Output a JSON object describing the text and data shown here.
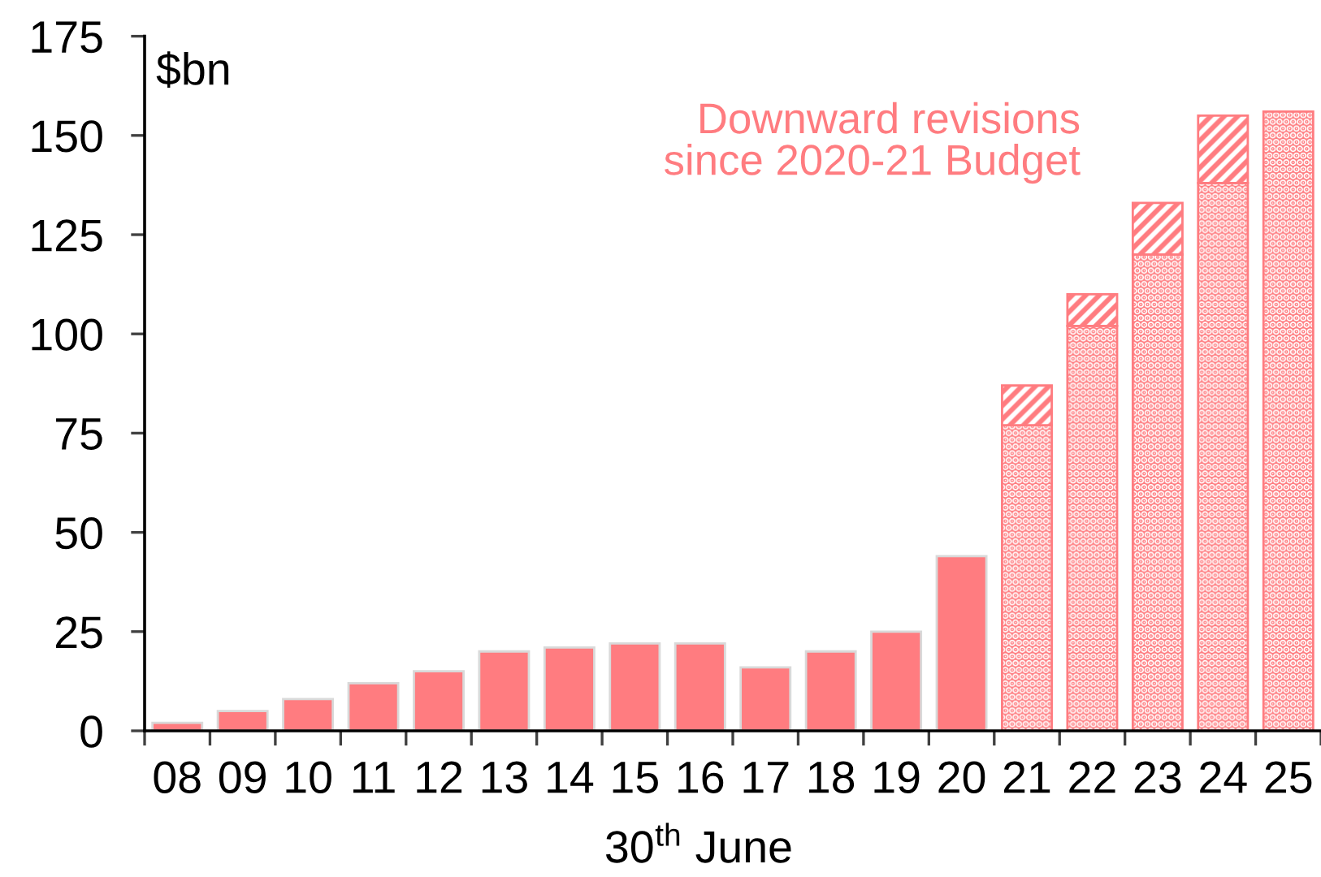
{
  "chart_data": {
    "type": "bar",
    "stacked": true,
    "ylabel": "$bn",
    "xlabel": "30$^{th}$ June",
    "annotations": [
      "Downward revisions\nsince 2020-21 Budget"
    ],
    "categories": [
      "08",
      "09",
      "10",
      "11",
      "12",
      "13",
      "14",
      "15",
      "16",
      "17",
      "18",
      "19",
      "20",
      "21",
      "22",
      "23",
      "24",
      "25"
    ],
    "series": [
      {
        "color": "#ff7c80",
        "values": [
          2,
          5,
          8,
          12,
          15,
          20,
          21,
          22,
          22,
          16,
          20,
          25,
          44,
          null,
          null,
          null,
          null,
          null
        ]
      },
      {
        "color": "#ff7c80",
        "values": [
          null,
          null,
          null,
          null,
          null,
          null,
          null,
          null,
          null,
          null,
          null,
          null,
          null,
          77,
          102,
          120,
          138,
          156
        ]
      },
      {
        "color": "#ff7c80",
        "values": [
          null,
          null,
          null,
          null,
          null,
          null,
          null,
          null,
          null,
          null,
          null,
          null,
          null,
          10,
          8,
          13,
          17,
          null
        ]
      }
    ],
    "ylim": [
      0,
      175
    ],
    "yticks": [
      0,
      25,
      50,
      75,
      100,
      125,
      150,
      175
    ]
  }
}
